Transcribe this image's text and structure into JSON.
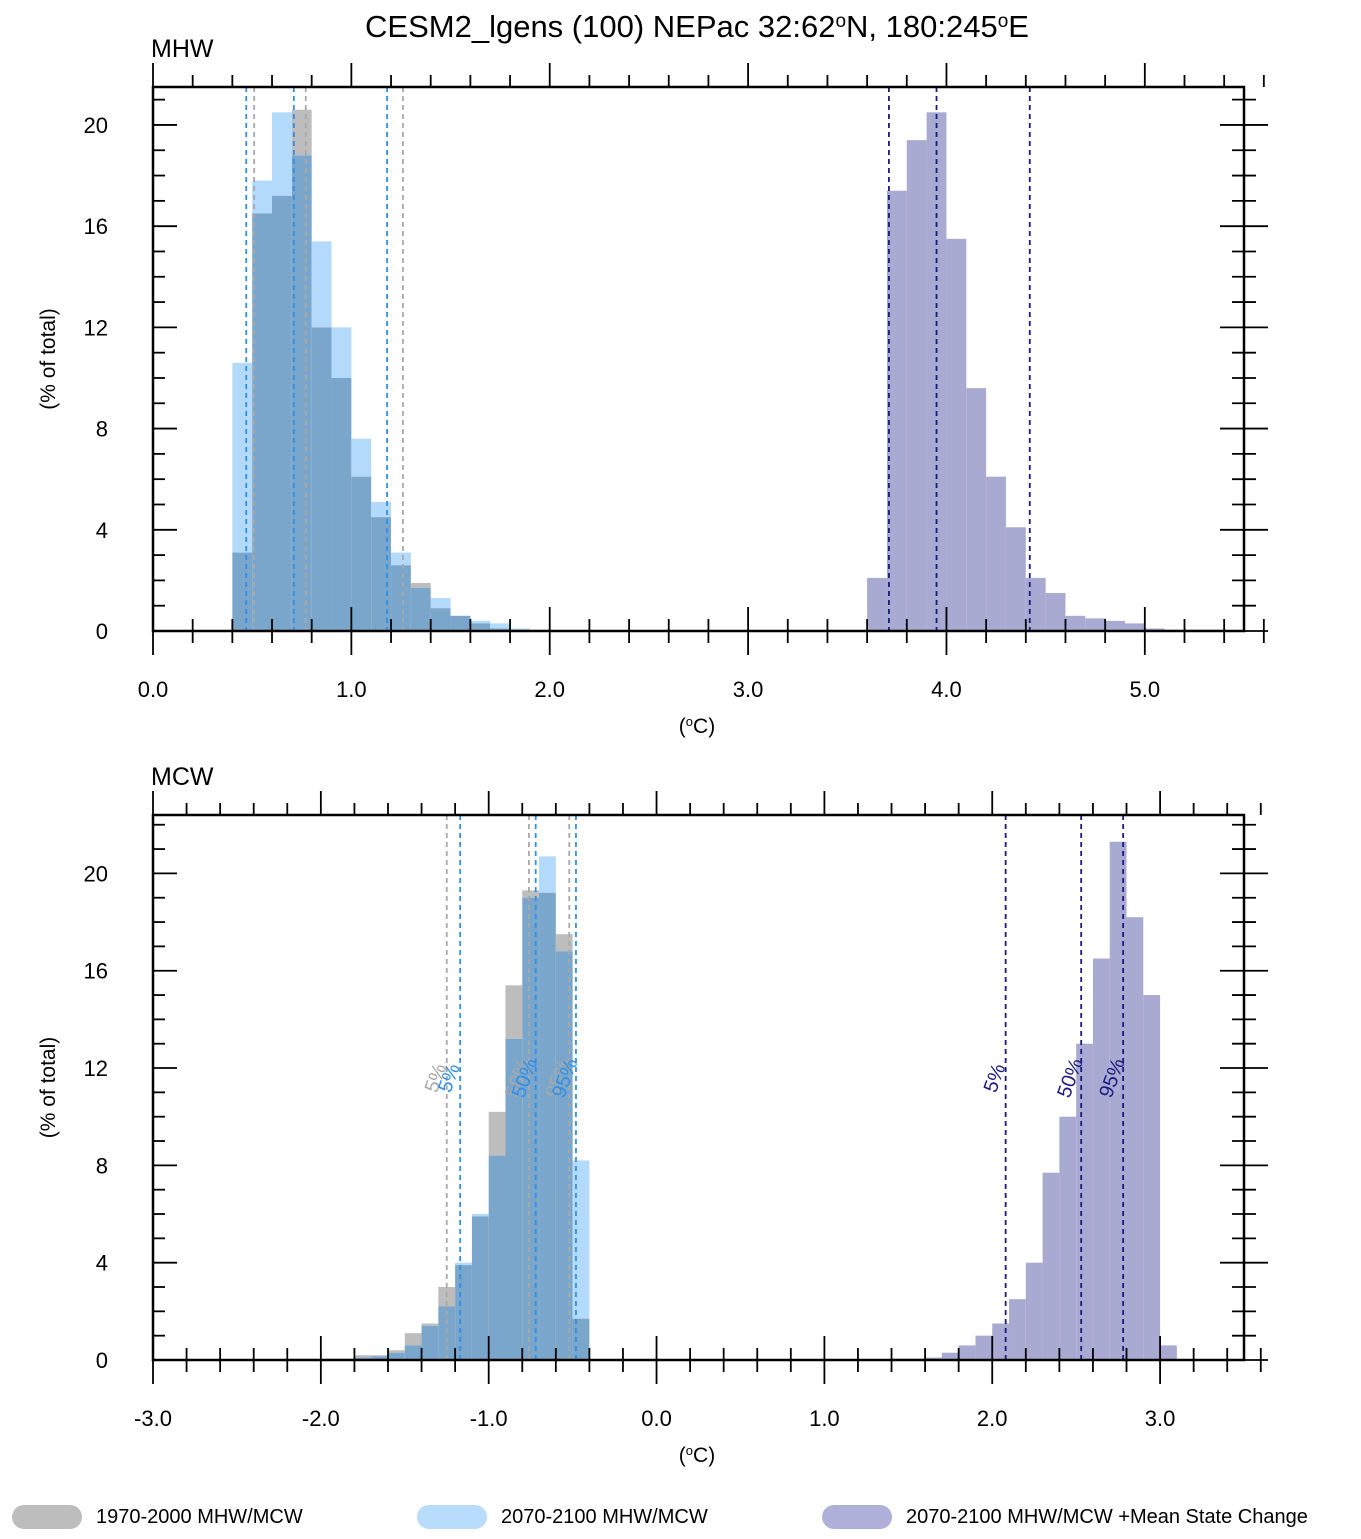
{
  "title_parts": {
    "pre": "CESM2_lgens (100) NEPac  32:62",
    "deg1": "o",
    "mid": "N, 180:245",
    "deg2": "o",
    "post": "E"
  },
  "ylabel": "(% of total)",
  "xlabel_parts": {
    "pre": "(",
    "deg": "o",
    "post": "C)"
  },
  "colors": {
    "hist": "#bdbdbd",
    "fut": "#b3d9fb",
    "overlap": "#7aa6cc",
    "mean": "#a9aad2",
    "hist_line": "#a8a8a8",
    "fut_line": "#2f8fe8",
    "mean_line": "#1a1a80"
  },
  "legend": [
    {
      "label": "1970-2000 MHW/MCW",
      "color": "#bdbdbd"
    },
    {
      "label": "2070-2100 MHW/MCW",
      "color": "#b8dcfb"
    },
    {
      "label": "2070-2100 MHW/MCW +Mean State Change",
      "color": "#aeb0da"
    }
  ],
  "chart_data": [
    {
      "type": "bar",
      "panel_label": "MHW",
      "xlim": [
        0,
        5.5
      ],
      "ylim": [
        0,
        21.5
      ],
      "xticks": [
        0.0,
        1.0,
        2.0,
        3.0,
        4.0,
        5.0
      ],
      "xtick_labels": [
        "0.0",
        "1.0",
        "2.0",
        "3.0",
        "4.0",
        "5.0"
      ],
      "yticks": [
        0,
        4,
        8,
        12,
        16,
        20
      ],
      "ytick_labels": [
        "0",
        "4",
        "8",
        "12",
        "16",
        "20"
      ],
      "bin_width": 0.1,
      "series": [
        {
          "key": "hist",
          "bin_start": 0.4,
          "values": [
            3.1,
            16.5,
            17.2,
            20.6,
            12.0,
            10.0,
            6.1,
            4.5,
            2.6,
            1.9,
            0.9,
            0.6,
            0.3,
            0.1,
            0.05,
            0.03,
            0.02
          ]
        },
        {
          "key": "fut",
          "bin_start": 0.4,
          "values": [
            10.6,
            17.8,
            20.5,
            18.8,
            15.4,
            12.0,
            7.6,
            5.1,
            3.1,
            1.7,
            1.3,
            0.6,
            0.4,
            0.3,
            0.1,
            0.05,
            0.02
          ]
        },
        {
          "key": "mean",
          "bin_start": 3.6,
          "values": [
            2.1,
            17.4,
            19.4,
            20.5,
            15.5,
            9.6,
            6.1,
            4.1,
            2.1,
            1.5,
            0.6,
            0.5,
            0.4,
            0.3,
            0.1,
            0.05,
            0.05,
            0.05
          ]
        }
      ],
      "percentile_lines": [
        {
          "key": "hist",
          "values": [
            0.51,
            0.77,
            1.26
          ]
        },
        {
          "key": "fut",
          "values": [
            0.47,
            0.71,
            1.18
          ]
        },
        {
          "key": "mean",
          "values": [
            3.71,
            3.95,
            4.42
          ]
        }
      ]
    },
    {
      "type": "bar",
      "panel_label": "MCW",
      "xlim": [
        -3.0,
        3.5
      ],
      "ylim": [
        0,
        22.4
      ],
      "xticks": [
        -3.0,
        -2.0,
        -1.0,
        0.0,
        1.0,
        2.0,
        3.0
      ],
      "xtick_labels": [
        "-3.0",
        "-2.0",
        "-1.0",
        "0.0",
        "1.0",
        "2.0",
        "3.0"
      ],
      "yticks": [
        0,
        4,
        8,
        12,
        16,
        20
      ],
      "ytick_labels": [
        "0",
        "4",
        "8",
        "12",
        "16",
        "20"
      ],
      "bin_width": 0.1,
      "series": [
        {
          "key": "hist",
          "bin_start": -2.2,
          "values": [
            0.05,
            0.05,
            0.05,
            0.05,
            0.2,
            0.2,
            0.4,
            1.1,
            1.5,
            3.0,
            3.9,
            5.9,
            10.2,
            15.4,
            19.3,
            19.2,
            17.5,
            1.7
          ]
        },
        {
          "key": "fut",
          "bin_start": -2.2,
          "values": [
            0.03,
            0.03,
            0.05,
            0.05,
            0.1,
            0.15,
            0.3,
            0.6,
            1.4,
            2.2,
            4.0,
            6.0,
            8.4,
            13.2,
            19.0,
            20.7,
            16.8,
            8.2
          ]
        },
        {
          "key": "mean",
          "bin_start": 1.4,
          "values": [
            0.05,
            0.05,
            0.1,
            0.3,
            0.6,
            1.0,
            1.5,
            2.5,
            4.0,
            7.7,
            10.0,
            13.0,
            16.5,
            21.3,
            18.2,
            15.0,
            0.6
          ]
        }
      ],
      "percentile_lines": [
        {
          "key": "hist",
          "values": [
            -1.25,
            -0.76,
            -0.52
          ]
        },
        {
          "key": "fut",
          "values": [
            -1.17,
            -0.72,
            -0.48
          ]
        },
        {
          "key": "mean",
          "values": [
            2.08,
            2.53,
            2.78
          ]
        }
      ],
      "annotations": [
        {
          "text": "5%",
          "x": -1.25,
          "y": 11.5,
          "key": "hist"
        },
        {
          "text": "5%",
          "x": -1.17,
          "y": 11.5,
          "key": "fut"
        },
        {
          "text": "50%",
          "x": -0.76,
          "y": 11.5,
          "key": "hist"
        },
        {
          "text": "50%",
          "x": -0.72,
          "y": 11.5,
          "key": "fut"
        },
        {
          "text": "95%",
          "x": -0.52,
          "y": 11.5,
          "key": "hist"
        },
        {
          "text": "95%",
          "x": -0.48,
          "y": 11.5,
          "key": "fut"
        },
        {
          "text": "5%",
          "x": 2.08,
          "y": 11.5,
          "key": "mean"
        },
        {
          "text": "50%",
          "x": 2.53,
          "y": 11.5,
          "key": "mean"
        },
        {
          "text": "95%",
          "x": 2.78,
          "y": 11.5,
          "key": "mean"
        }
      ]
    }
  ]
}
